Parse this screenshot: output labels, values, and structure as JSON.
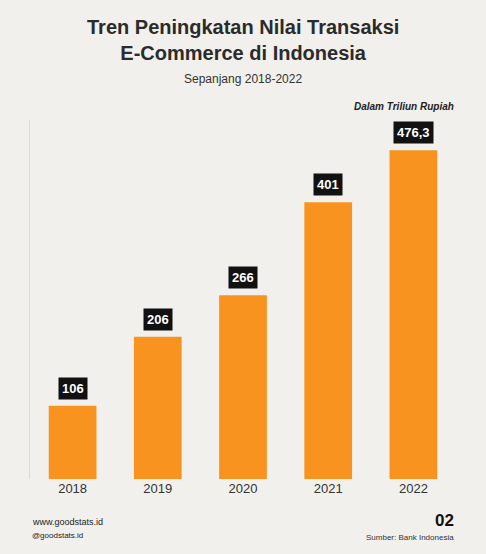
{
  "chart_data": {
    "type": "bar",
    "title": "Tren Peningkatan Nilai Transaksi E-Commerce di Indonesia",
    "subtitle": "Sepanjang 2018-2022",
    "annotations": [
      "Dalam Triliun Rupiah"
    ],
    "categories": [
      "2018",
      "2019",
      "2020",
      "2021",
      "2022"
    ],
    "values": [
      106,
      206,
      266,
      401,
      476.3
    ],
    "value_labels": [
      "106",
      "206",
      "266",
      "401",
      "476,3"
    ],
    "color": "#f7931e",
    "data_labels": true,
    "ylim": [
      0,
      520
    ],
    "yticks": [],
    "grid": false,
    "tick_labels": "x",
    "source": "Sumber: Bank Indonesia",
    "footer": {
      "website": "www.goodstats.id",
      "social": "@goodstats.id",
      "page": "02"
    }
  }
}
